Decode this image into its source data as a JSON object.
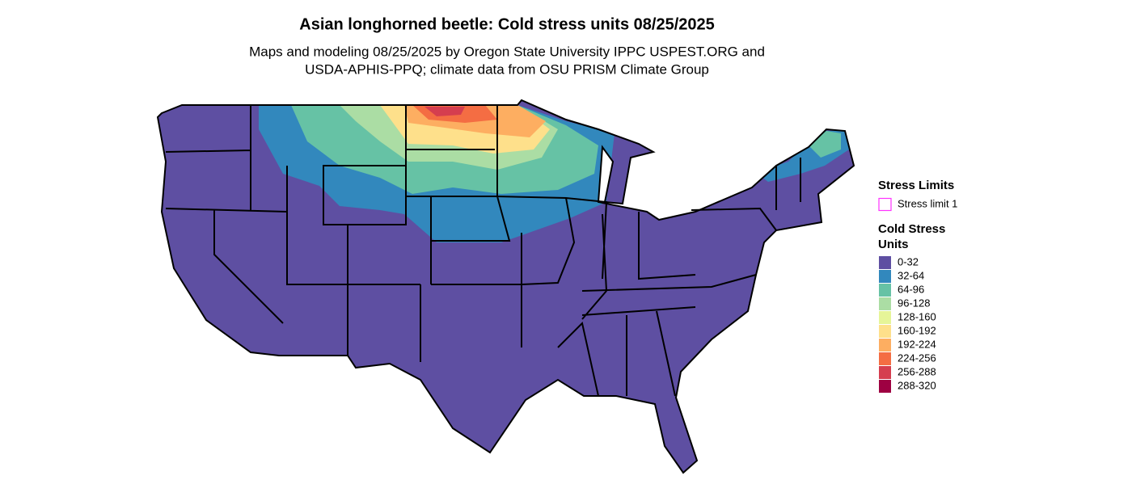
{
  "header": {
    "title": "Asian longhorned beetle: Cold stress units 08/25/2025",
    "subtitle": [
      "Maps and modeling 08/25/2025 by Oregon State University IPPC USPEST.ORG and",
      "USDA-APHIS-PPQ; climate data from OSU PRISM Climate Group"
    ]
  },
  "legend": {
    "stress_title": "Stress Limits",
    "stress_items": [
      {
        "label": "Stress limit 1",
        "color": "#ff33ff"
      }
    ],
    "scale_title": [
      "Cold Stress",
      "Units"
    ],
    "classes": [
      {
        "label": "0-32",
        "color": "#5e4fa2"
      },
      {
        "label": "32-64",
        "color": "#3288bd"
      },
      {
        "label": "64-96",
        "color": "#66c2a5"
      },
      {
        "label": "96-128",
        "color": "#abdda4"
      },
      {
        "label": "128-160",
        "color": "#e6f598"
      },
      {
        "label": "160-192",
        "color": "#fee08b"
      },
      {
        "label": "192-224",
        "color": "#fdae61"
      },
      {
        "label": "224-256",
        "color": "#f46d43"
      },
      {
        "label": "256-288",
        "color": "#d53e4f"
      },
      {
        "label": "288-320",
        "color": "#9e0142"
      }
    ]
  }
}
